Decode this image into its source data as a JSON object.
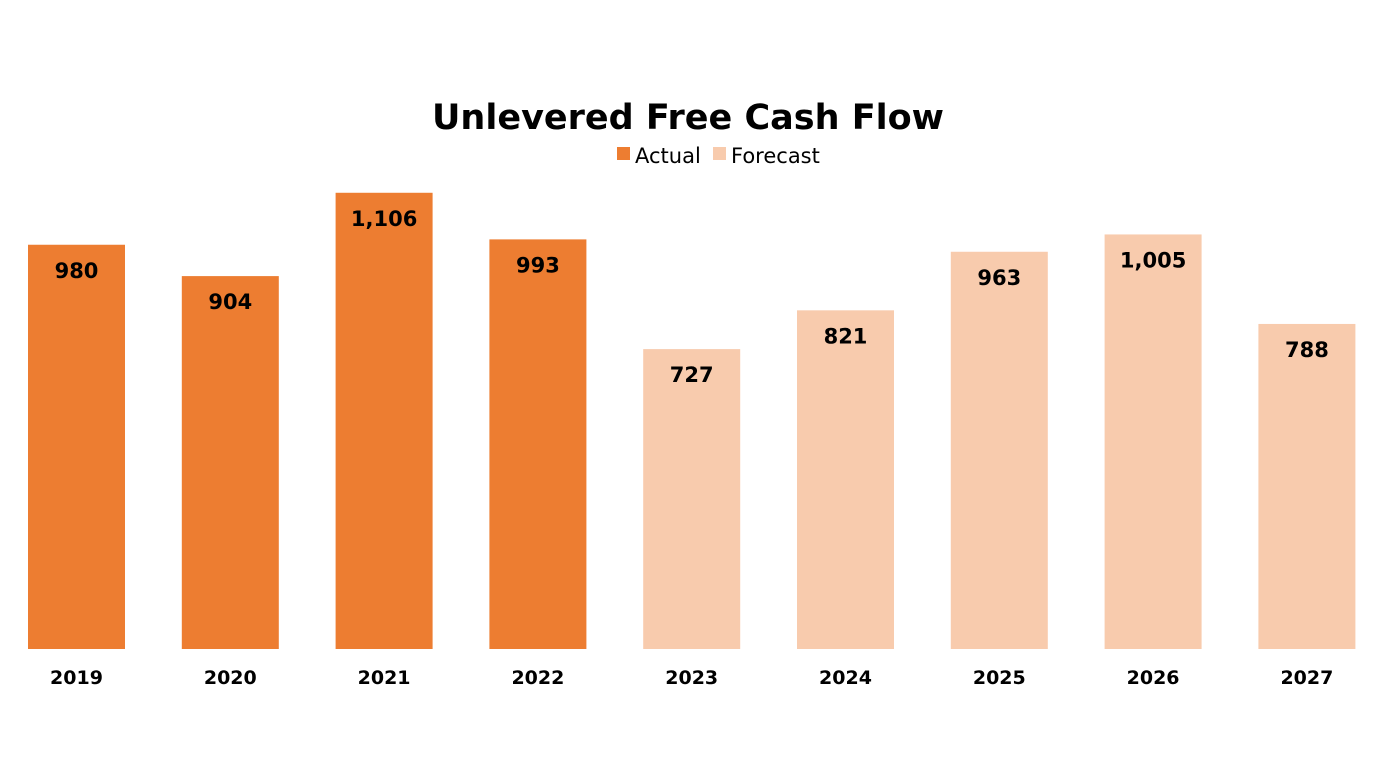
{
  "chart_data": {
    "type": "bar",
    "title": "Unlevered Free Cash Flow",
    "xlabel": "",
    "ylabel": "",
    "ylim": [
      0,
      1200
    ],
    "grid": false,
    "legend_placement": "top",
    "categories": [
      "2019",
      "2020",
      "2021",
      "2022",
      "2023",
      "2024",
      "2025",
      "2026",
      "2027"
    ],
    "values": [
      980,
      904,
      1106,
      993,
      727,
      821,
      963,
      1005,
      788
    ],
    "data_labels": [
      "980",
      "904",
      "1,106",
      "993",
      "727",
      "821",
      "963",
      "1,005",
      "788"
    ],
    "series": [
      {
        "name": "Actual",
        "color": "#ED7D31",
        "categories": [
          "2019",
          "2020",
          "2021",
          "2022"
        ]
      },
      {
        "name": "Forecast",
        "color": "#F8CBAD",
        "categories": [
          "2023",
          "2024",
          "2025",
          "2026",
          "2027"
        ]
      }
    ]
  }
}
